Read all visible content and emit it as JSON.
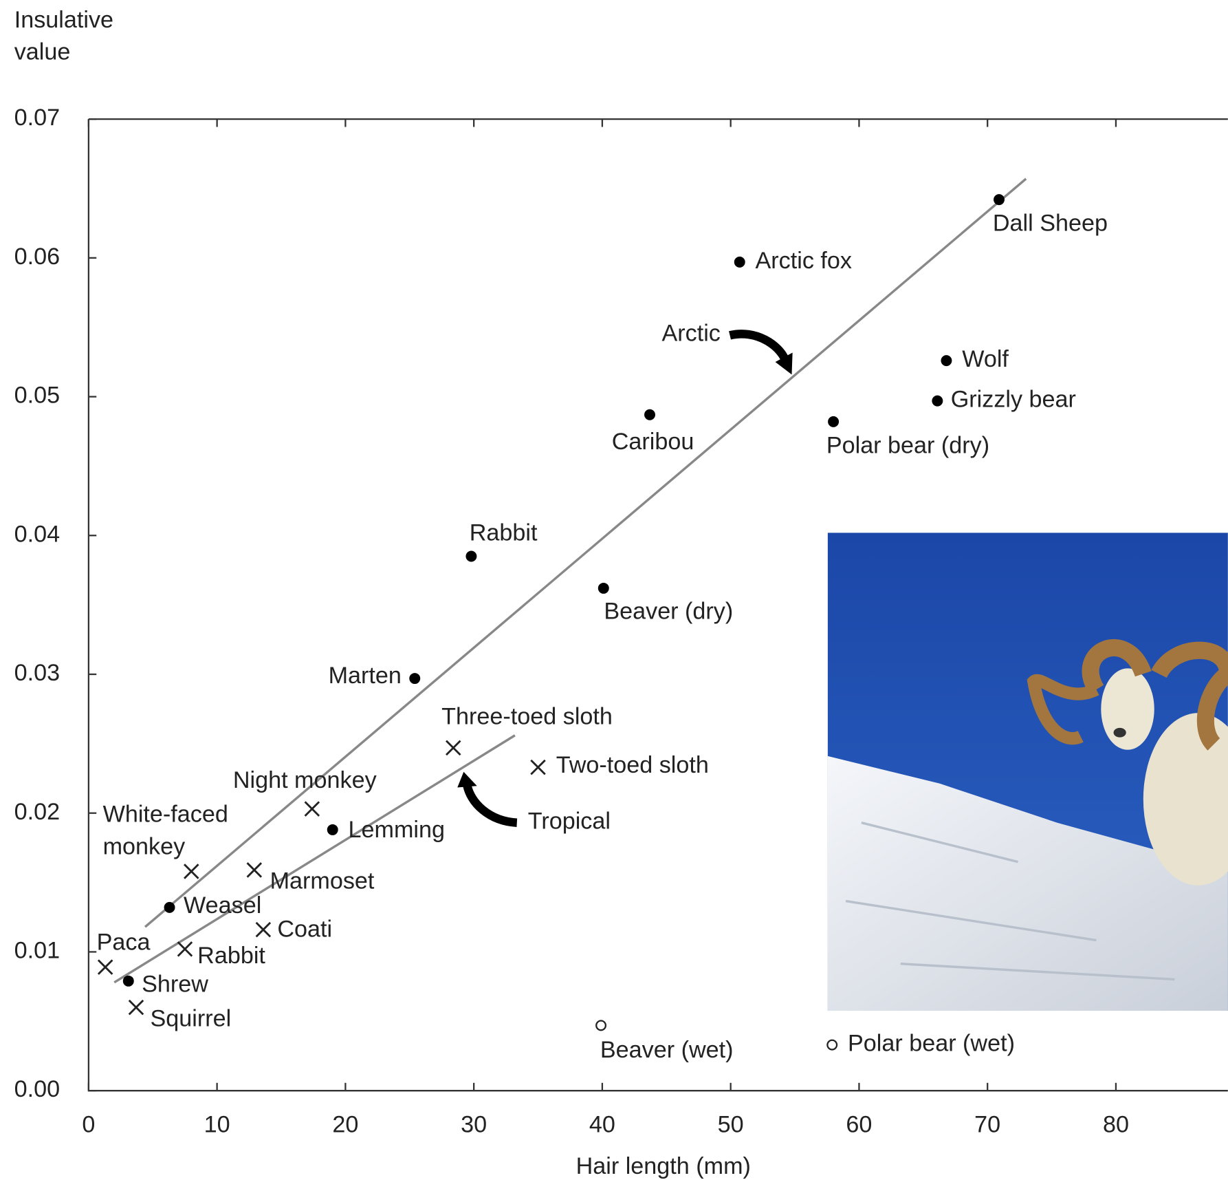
{
  "chart_data": {
    "type": "scatter",
    "x_label": "Hair length (mm)",
    "y_label": "Insulative value",
    "xlim": [
      0,
      88.7
    ],
    "ylim": [
      0,
      0.07
    ],
    "xticks": [
      0,
      10,
      20,
      30,
      40,
      50,
      60,
      70,
      80
    ],
    "yticks": [
      {
        "value": 0,
        "label": "0.00"
      },
      0.01,
      0.02,
      0.03,
      0.04,
      0.05,
      0.06,
      0.07
    ],
    "series": [
      {
        "name": "Arctic",
        "marker": "dot",
        "color": "#000000",
        "labels": [
          "Dall Sheep",
          "Arctic fox",
          "Wolf",
          "Grizzly bear",
          "Polar bear (dry)",
          "Caribou",
          "Rabbit",
          "Beaver (dry)",
          "Marten",
          "Lemming",
          "Weasel",
          "Shrew"
        ],
        "x": [
          70.9,
          50.7,
          66.8,
          66.1,
          58.0,
          43.7,
          29.8,
          40.1,
          25.4,
          19.0,
          6.3,
          3.1
        ],
        "y": [
          0.0642,
          0.0597,
          0.0526,
          0.0497,
          0.0482,
          0.0487,
          0.0385,
          0.0362,
          0.0297,
          0.0188,
          0.0132,
          0.0079
        ]
      },
      {
        "name": "Tropical",
        "marker": "cross",
        "color": "#222222",
        "labels": [
          "Three-toed sloth",
          "Two-toed sloth",
          "Night monkey",
          "White-faced monkey",
          "Marmoset",
          "Coati",
          "Rabbit",
          "Paca",
          "Squirrel"
        ],
        "x": [
          28.4,
          35.0,
          17.4,
          8.0,
          12.9,
          13.6,
          7.5,
          1.3,
          3.7
        ],
        "y": [
          0.0247,
          0.0233,
          0.0203,
          0.0158,
          0.0159,
          0.0116,
          0.0102,
          0.0089,
          0.006
        ]
      },
      {
        "marker": "open",
        "color": "#222222",
        "labels": [
          "Beaver (wet)",
          "Polar bear (wet)"
        ],
        "x": [
          39.9,
          57.9
        ],
        "y": [
          0.0047,
          0.0033
        ]
      }
    ],
    "fit_lines": [
      {
        "color": "#888888",
        "x": [
          4.4,
          73.0
        ],
        "y": [
          0.0118,
          0.0657
        ]
      },
      {
        "color": "#888888",
        "x": [
          2.0,
          33.2
        ],
        "y": [
          0.0078,
          0.0256
        ]
      }
    ]
  }
}
